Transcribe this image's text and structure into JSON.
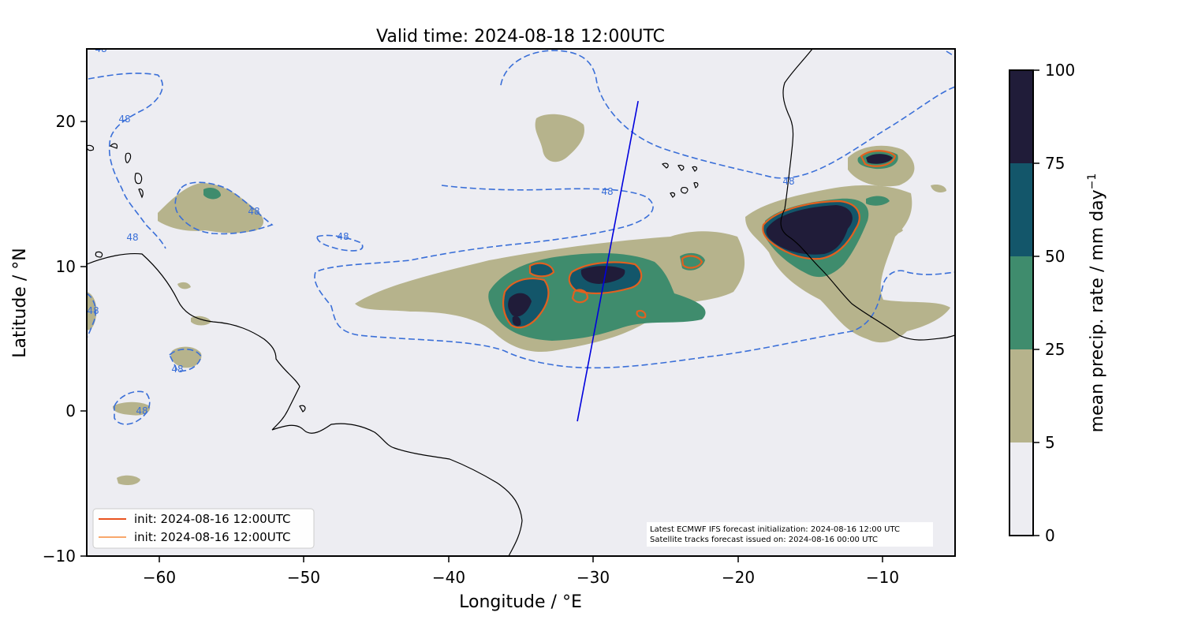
{
  "title": "Valid time: 2024-08-18 12:00UTC",
  "xlabel": "Longitude / °E",
  "ylabel": "Latitude / °N",
  "x_ticks": [
    "−60",
    "−50",
    "−40",
    "−30",
    "−20",
    "−10"
  ],
  "y_ticks": [
    "20",
    "10",
    "0",
    "−10"
  ],
  "legend": [
    {
      "label": "init: 2024-08-16 12:00UTC",
      "color": "#e8531f"
    },
    {
      "label": "init: 2024-08-16 12:00UTC",
      "color": "#f58a3a"
    }
  ],
  "note": {
    "line1": "Latest ECMWF IFS forecast initialization: 2024-08-16 12:00 UTC",
    "line2": "Satellite tracks forecast issued on: 2024-08-16 00:00 UTC"
  },
  "contour_label": "48",
  "colorbar": {
    "label": "mean precip. rate / mm day",
    "label_sup": "−1",
    "ticks": [
      "100",
      "75",
      "50",
      "25",
      "5",
      "0"
    ],
    "levels": [
      0,
      5,
      25,
      50,
      75,
      100
    ],
    "colors": [
      "#ededf2",
      "#b6b38c",
      "#3f8c6d",
      "#13566a",
      "#201c39"
    ]
  },
  "chart_data": {
    "type": "heatmap",
    "xlim": [
      -65,
      -5
    ],
    "ylim": [
      -10,
      25
    ],
    "satellite_track": [
      [
        -31.1,
        -0.7
      ],
      [
        -26.9,
        21.4
      ]
    ],
    "track_color": "#0000dd",
    "contour_color": "#3a6fd8",
    "contour_value": 48
  }
}
